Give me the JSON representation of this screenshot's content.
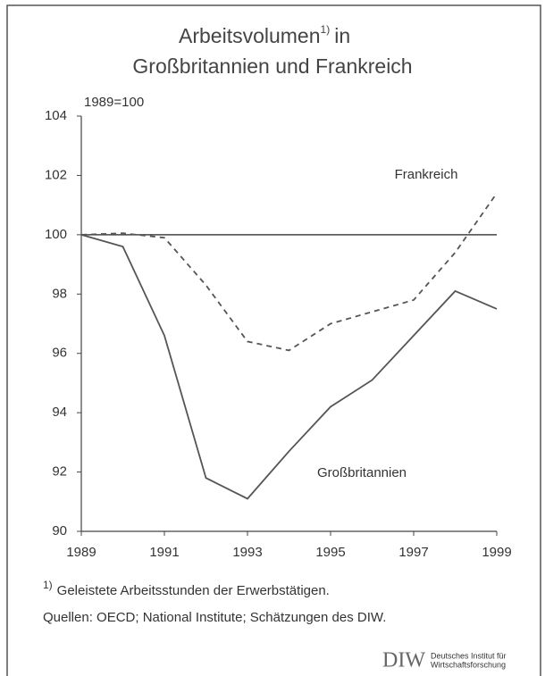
{
  "chart_data": {
    "type": "line",
    "title": {
      "text1": "Arbeitsvolumen",
      "ref": "1)",
      "text2": "in",
      "line2": "Großbritannien und Frankreich"
    },
    "y_label": "1989=100",
    "x": [
      1989,
      1990,
      1991,
      1992,
      1993,
      1994,
      1995,
      1996,
      1997,
      1998,
      1999
    ],
    "series": [
      {
        "name": "Frankreich",
        "color": "#555555",
        "dashed": true,
        "values": [
          100,
          100.05,
          99.9,
          98.3,
          96.4,
          96.1,
          97.0,
          97.4,
          97.8,
          99.4,
          101.4
        ]
      },
      {
        "name": "Großbritannien",
        "color": "#555555",
        "dashed": false,
        "values": [
          100,
          99.6,
          96.6,
          91.8,
          91.1,
          92.7,
          94.2,
          95.1,
          96.6,
          98.1,
          97.5
        ]
      }
    ],
    "reference_line": 100,
    "xlim": [
      1989,
      1999
    ],
    "xticks": [
      1989,
      1991,
      1993,
      1995,
      1997,
      1999
    ],
    "ylim": [
      90,
      104
    ],
    "yticks": [
      90,
      92,
      94,
      96,
      98,
      100,
      102,
      104
    ],
    "footnote": {
      "ref": "1)",
      "text": "Geleistete Arbeitsstunden der Erwerbstätigen."
    },
    "source": "Quellen: OECD; National Institute; Schätzungen des DIW.",
    "logo": {
      "mark": "DIW",
      "line1": "Deutsches Institut für",
      "line2": "Wirtschaftsforschung"
    }
  }
}
